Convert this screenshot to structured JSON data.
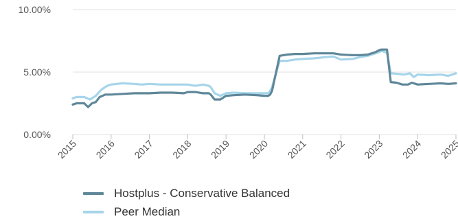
{
  "chart_data": {
    "type": "line",
    "x_ticks": [
      "2015",
      "2016",
      "2017",
      "2018",
      "2019",
      "2020",
      "2021",
      "2022",
      "2023",
      "2024",
      "2025"
    ],
    "y_ticks": [
      "0.00%",
      "5.00%",
      "10.00%"
    ],
    "ylim": [
      0,
      10
    ],
    "xlim": [
      2015,
      2025
    ],
    "grid": true,
    "legend_position": "bottom",
    "series": [
      {
        "name": "Hostplus - Conservative Balanced",
        "color": "#5f8799",
        "x": [
          2015.0,
          2015.1,
          2015.3,
          2015.4,
          2015.5,
          2015.6,
          2015.7,
          2015.85,
          2016.0,
          2016.3,
          2016.6,
          2016.8,
          2017.0,
          2017.3,
          2017.6,
          2017.9,
          2018.0,
          2018.2,
          2018.4,
          2018.55,
          2018.6,
          2018.7,
          2018.85,
          2019.0,
          2019.2,
          2019.5,
          2019.8,
          2020.0,
          2020.1,
          2020.15,
          2020.2,
          2020.4,
          2020.6,
          2020.8,
          2021.0,
          2021.3,
          2021.6,
          2021.8,
          2022.0,
          2022.3,
          2022.5,
          2022.7,
          2022.9,
          2023.0,
          2023.05,
          2023.15,
          2023.2,
          2023.3,
          2023.45,
          2023.6,
          2023.75,
          2023.85,
          2024.0,
          2024.3,
          2024.6,
          2024.8,
          2025.0
        ],
        "y": [
          2.4,
          2.5,
          2.5,
          2.2,
          2.5,
          2.6,
          3.0,
          3.2,
          3.2,
          3.25,
          3.3,
          3.3,
          3.3,
          3.35,
          3.35,
          3.3,
          3.4,
          3.4,
          3.3,
          3.3,
          3.2,
          2.8,
          2.8,
          3.1,
          3.15,
          3.2,
          3.15,
          3.1,
          3.1,
          3.2,
          3.5,
          6.3,
          6.4,
          6.45,
          6.45,
          6.5,
          6.5,
          6.5,
          6.4,
          6.35,
          6.35,
          6.4,
          6.6,
          6.75,
          6.8,
          6.8,
          6.8,
          4.2,
          4.15,
          4.0,
          4.0,
          4.15,
          4.0,
          4.05,
          4.1,
          4.05,
          4.1
        ]
      },
      {
        "name": "Peer Median",
        "color": "#a6d5ea",
        "x": [
          2015.0,
          2015.1,
          2015.3,
          2015.45,
          2015.6,
          2015.75,
          2015.9,
          2016.0,
          2016.3,
          2016.6,
          2016.8,
          2017.0,
          2017.3,
          2017.6,
          2017.9,
          2018.0,
          2018.2,
          2018.4,
          2018.55,
          2018.6,
          2018.7,
          2018.85,
          2019.0,
          2019.2,
          2019.5,
          2019.8,
          2020.0,
          2020.1,
          2020.15,
          2020.2,
          2020.4,
          2020.6,
          2020.8,
          2021.0,
          2021.3,
          2021.6,
          2021.8,
          2022.0,
          2022.3,
          2022.5,
          2022.7,
          2022.9,
          2023.0,
          2023.05,
          2023.15,
          2023.2,
          2023.3,
          2023.5,
          2023.65,
          2023.8,
          2023.9,
          2024.0,
          2024.3,
          2024.6,
          2024.8,
          2025.0
        ],
        "y": [
          2.9,
          3.0,
          3.0,
          2.8,
          3.1,
          3.6,
          3.9,
          4.0,
          4.1,
          4.05,
          4.0,
          4.05,
          4.0,
          4.0,
          4.0,
          4.0,
          3.9,
          4.0,
          3.9,
          3.8,
          3.3,
          3.1,
          3.3,
          3.35,
          3.3,
          3.3,
          3.3,
          3.3,
          3.5,
          3.8,
          5.9,
          5.9,
          6.0,
          6.05,
          6.1,
          6.2,
          6.25,
          6.0,
          6.05,
          6.2,
          6.3,
          6.5,
          6.6,
          6.7,
          6.6,
          6.55,
          4.9,
          4.85,
          4.8,
          4.9,
          4.6,
          4.8,
          4.75,
          4.8,
          4.7,
          4.9
        ]
      }
    ]
  }
}
